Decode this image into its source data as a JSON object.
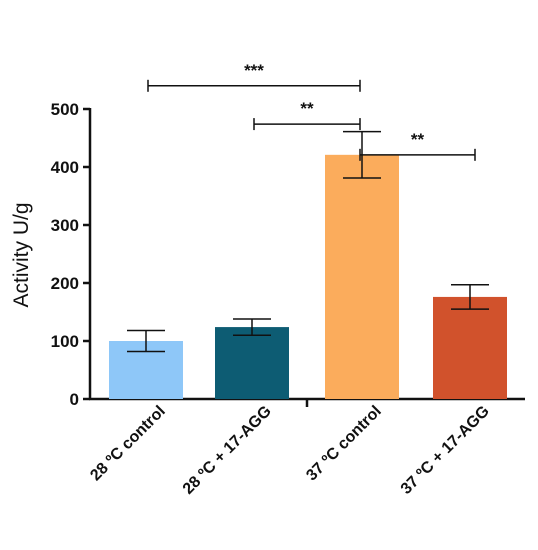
{
  "chart_data": {
    "type": "bar",
    "categories": [
      "28 ºC control",
      "28 ºC + 17-AGG",
      "37 ºC control",
      "37 ºC + 17-AGG"
    ],
    "values": [
      100,
      124,
      421,
      176
    ],
    "errors": [
      18,
      14,
      40,
      21
    ],
    "colors": [
      "#8ec7f8",
      "#0d5c73",
      "#fbac5c",
      "#d1522c"
    ],
    "title": "",
    "xlabel": "",
    "ylabel": "Activity U/g",
    "ylim": [
      0,
      500
    ],
    "yticks": [
      0,
      100,
      200,
      300,
      400,
      500
    ],
    "ytick_labels": [
      "0",
      "100",
      "200",
      "300",
      "400",
      "500"
    ],
    "grid": false,
    "significance": [
      {
        "from": 0,
        "to": 2,
        "label": "***",
        "y": 540
      },
      {
        "from": 1,
        "to": 2,
        "label": "**",
        "y": 474
      },
      {
        "from": 2,
        "to": 3,
        "label": "**",
        "y": 421
      }
    ]
  }
}
